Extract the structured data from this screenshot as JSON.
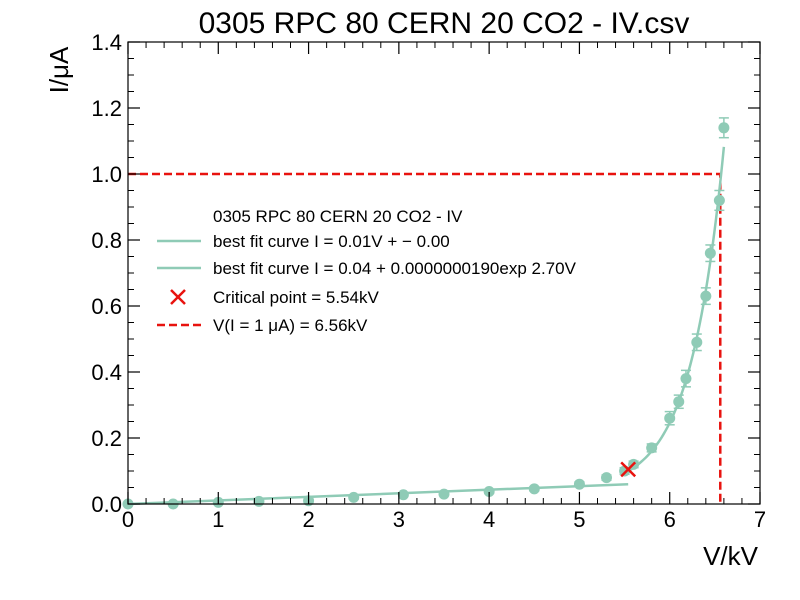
{
  "chart_data": {
    "type": "scatter",
    "title": "0305 RPC 80 CERN 20 CO2 - IV.csv",
    "xlabel": "V/kV",
    "ylabel": "I/μA",
    "xlim": [
      0,
      7
    ],
    "ylim": [
      0,
      1.4
    ],
    "xticks": [
      "0",
      "1",
      "2",
      "3",
      "4",
      "5",
      "6",
      "7"
    ],
    "yticks": [
      "0.0",
      "0.2",
      "0.4",
      "0.6",
      "0.8",
      "1.0",
      "1.2",
      "1.4"
    ],
    "grid": false,
    "legend_position": "center-left",
    "colors": {
      "data": "#8fcbb6",
      "critical": "#e8130f",
      "threshold": "#e8130f"
    },
    "series": [
      {
        "name": "0305 RPC 80 CERN 20 CO2 - IV",
        "marker": "circle",
        "x": [
          0.0,
          0.5,
          1.0,
          1.45,
          2.0,
          2.5,
          3.05,
          3.5,
          4.0,
          4.5,
          5.0,
          5.3,
          5.5,
          5.6,
          5.8,
          6.0,
          6.1,
          6.18,
          6.3,
          6.4,
          6.45,
          6.55,
          6.6
        ],
        "y": [
          0.0,
          0.0,
          0.005,
          0.008,
          0.01,
          0.02,
          0.028,
          0.03,
          0.038,
          0.046,
          0.06,
          0.08,
          0.1,
          0.12,
          0.17,
          0.26,
          0.31,
          0.38,
          0.49,
          0.63,
          0.76,
          0.92,
          1.14
        ],
        "yerr": [
          0.0,
          0.0,
          0.004,
          0.004,
          0.004,
          0.005,
          0.005,
          0.005,
          0.006,
          0.006,
          0.007,
          0.008,
          0.01,
          0.01,
          0.012,
          0.02,
          0.02,
          0.025,
          0.025,
          0.025,
          0.025,
          0.03,
          0.03
        ]
      }
    ],
    "fits": [
      {
        "name": "best fit curve",
        "formula": "I = 0.01V + −0.00",
        "x": [
          0.0,
          5.54
        ],
        "y": [
          0.0,
          0.06
        ]
      },
      {
        "name": "best fit curve",
        "formula": "I = 0.04 + 0.0000000190exp 2.70V",
        "x": [
          5.54,
          6.6
        ]
      }
    ],
    "critical_point": {
      "label": "Critical point = 5.54kV",
      "x": 5.54,
      "y": 0.105
    },
    "threshold": {
      "label": "V(I = 1 μA) = 6.56kV",
      "current": 1.0,
      "voltage": 6.56
    }
  },
  "legend": [
    {
      "text": "0305 RPC 80 CERN 20 CO2 - IV"
    },
    {
      "text": "best fit curve I = 0.01V + − 0.00"
    },
    {
      "text": "best fit curve I = 0.04 + 0.0000000190exp 2.70V"
    },
    {
      "text": "Critical point = 5.54kV"
    },
    {
      "text": "V(I = 1 μA) = 6.56kV"
    }
  ]
}
